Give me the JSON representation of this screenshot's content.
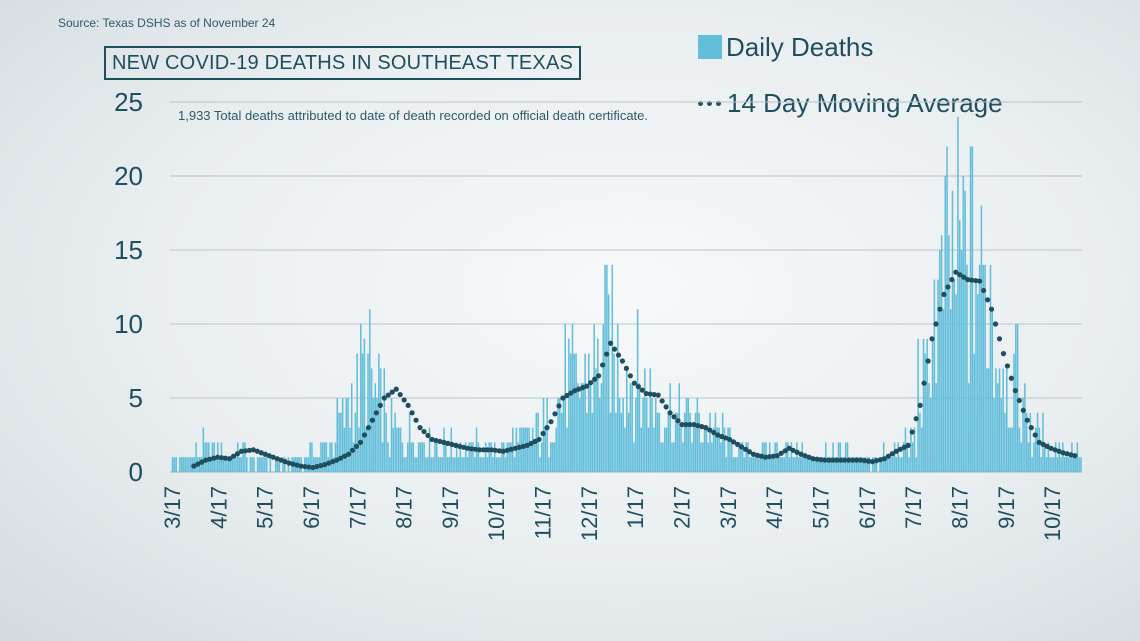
{
  "source": "Source: Texas DSHS as of November 24",
  "title": "NEW COVID-19 DEATHS IN SOUTHEAST TEXAS",
  "subtitle": "1,933 Total deaths attributed to date of death recorded on official death certificate.",
  "legend": {
    "bars": "Daily Deaths",
    "line": "14 Day Moving Average"
  },
  "colors": {
    "bar": "#63bedb",
    "line": "#1f4e5f",
    "grid": "#b9c4c9",
    "text": "#1f4e5f"
  },
  "chart_data": {
    "type": "bar",
    "ylim": [
      0,
      25
    ],
    "yticks": [
      0,
      5,
      10,
      15,
      20,
      25
    ],
    "xticks": [
      "3/17",
      "4/17",
      "5/17",
      "6/17",
      "7/17",
      "8/17",
      "9/17",
      "10/17",
      "11/17",
      "12/17",
      "1/17",
      "2/17",
      "3/17",
      "4/17",
      "5/17",
      "6/17",
      "7/17",
      "8/17",
      "9/17",
      "10/17"
    ],
    "series": [
      {
        "name": "Daily Deaths",
        "kind": "bar",
        "weekly_values": [
          0.6,
          1.2,
          1.5,
          1.3,
          1.2,
          1.1,
          0.8,
          0.6,
          0.5,
          0.8,
          0.8,
          1.2,
          1.6,
          3.0,
          4.8,
          6.4,
          4.5,
          2.6,
          2.4,
          2.2,
          2.0,
          1.6,
          1.6,
          1.5,
          1.5,
          1.5,
          1.7,
          2.0,
          2.3,
          2.8,
          4.6,
          5.8,
          5.5,
          6.6,
          8.4,
          7.0,
          6.2,
          5.4,
          4.5,
          3.8,
          3.3,
          3.2,
          2.8,
          2.5,
          1.8,
          1.3,
          1.2,
          1.4,
          1.5,
          1.2,
          1.0,
          1.1,
          1.1,
          1.0,
          1.0,
          0.8,
          0.9,
          1.5,
          1.8,
          5.5,
          10.5,
          13.0,
          13.8,
          13.5,
          11.5,
          8.0,
          6.0,
          4.0,
          2.2,
          1.5,
          1.4,
          1.2
        ]
      },
      {
        "name": "14 Day Moving Average",
        "kind": "dotted-line",
        "x_start_week": 2,
        "weekly_values": [
          0.4,
          0.8,
          1.0,
          0.9,
          1.4,
          1.5,
          1.2,
          0.9,
          0.6,
          0.4,
          0.3,
          0.5,
          0.8,
          1.2,
          2.0,
          3.5,
          5.0,
          5.6,
          4.5,
          3.0,
          2.2,
          2.0,
          1.8,
          1.6,
          1.5,
          1.5,
          1.4,
          1.6,
          1.8,
          2.2,
          3.4,
          5.0,
          5.5,
          5.8,
          6.5,
          8.7,
          7.5,
          6.0,
          5.3,
          5.2,
          4.0,
          3.2,
          3.2,
          3.0,
          2.5,
          2.2,
          1.7,
          1.2,
          1.0,
          1.1,
          1.6,
          1.2,
          0.9,
          0.8,
          0.8,
          0.8,
          0.8,
          0.7,
          0.9,
          1.4,
          1.8,
          4.5,
          9.0,
          12.0,
          13.5,
          13.0,
          12.9,
          11.0,
          8.0,
          5.5,
          3.5,
          2.0,
          1.6,
          1.3,
          1.1
        ]
      }
    ]
  }
}
